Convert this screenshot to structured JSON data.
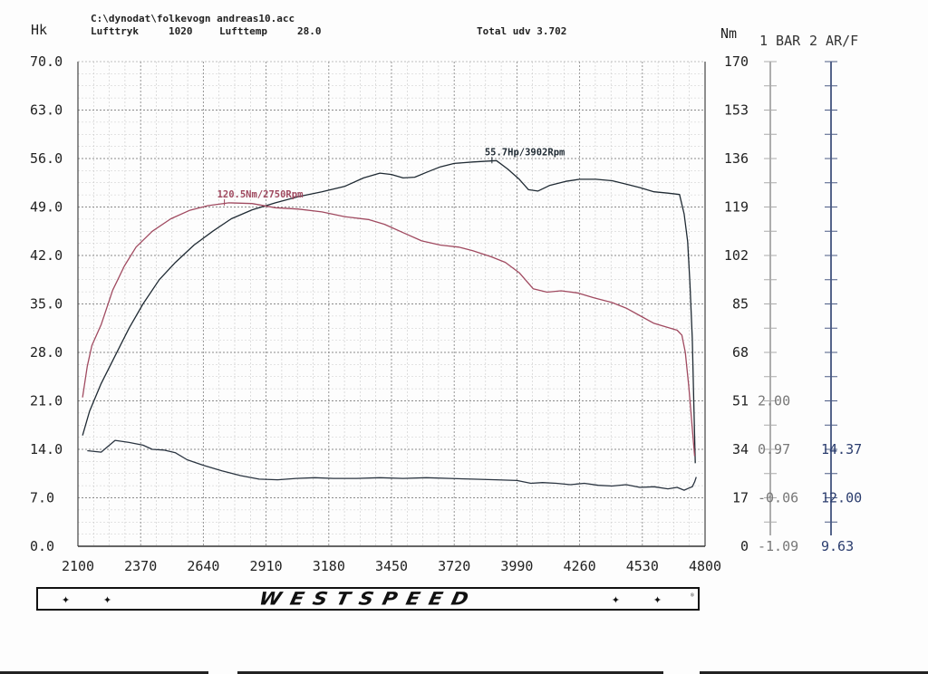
{
  "header": {
    "file": "C:\\dynodat\\folkevogn andreas10.acc",
    "pressure_label": "Lufttryk",
    "pressure_value": "1020",
    "temp_label": "Lufttemp",
    "temp_value": "28.0",
    "total_label": "Total udv 3.702"
  },
  "banner": {
    "brand": "WESTSPEED",
    "stars_left": "✦ ✦",
    "stars_right": "✦ ✦",
    "reg": "®"
  },
  "chart_data": {
    "type": "line",
    "x": {
      "min": 2100,
      "max": 4800,
      "ticks": [
        "2100",
        "2370",
        "2640",
        "2910",
        "3180",
        "3450",
        "3720",
        "3990",
        "4260",
        "4530",
        "4800"
      ]
    },
    "y_left": {
      "label": "Hk",
      "min": 0,
      "max": 70,
      "ticks": [
        "0.0",
        "7.0",
        "14.0",
        "21.0",
        "28.0",
        "35.0",
        "42.0",
        "49.0",
        "56.0",
        "63.0",
        "70.0"
      ]
    },
    "y_right": {
      "label": "Nm",
      "min": 0,
      "max": 170,
      "ticks": [
        "0",
        "17",
        "34",
        "51",
        "68",
        "85",
        "102",
        "119",
        "136",
        "153",
        "170"
      ]
    },
    "aux_axes": [
      {
        "label": "1 BAR",
        "ticks": [
          "-1.09",
          "-0.06",
          "0.97",
          "2.00"
        ],
        "tick_levels": [
          0,
          7,
          14,
          21
        ]
      },
      {
        "label": "2 AR/F",
        "ticks": [
          "9.63",
          "12.00",
          "14.37"
        ],
        "tick_levels": [
          0,
          7,
          14
        ]
      }
    ],
    "grid": true,
    "series": [
      {
        "color": "#1f2a33",
        "axis": "left",
        "points": [
          [
            2120,
            16
          ],
          [
            2150,
            19.5
          ],
          [
            2200,
            23.5
          ],
          [
            2260,
            27.5
          ],
          [
            2320,
            31.5
          ],
          [
            2380,
            35
          ],
          [
            2450,
            38.5
          ],
          [
            2520,
            41
          ],
          [
            2600,
            43.5
          ],
          [
            2680,
            45.5
          ],
          [
            2760,
            47.3
          ],
          [
            2850,
            48.6
          ],
          [
            2950,
            49.6
          ],
          [
            3050,
            50.5
          ],
          [
            3150,
            51.2
          ],
          [
            3250,
            52
          ],
          [
            3330,
            53.2
          ],
          [
            3400,
            53.9
          ],
          [
            3450,
            53.7
          ],
          [
            3500,
            53.2
          ],
          [
            3550,
            53.3
          ],
          [
            3600,
            54
          ],
          [
            3660,
            54.8
          ],
          [
            3720,
            55.3
          ],
          [
            3800,
            55.5
          ],
          [
            3902,
            55.7
          ],
          [
            3950,
            54.5
          ],
          [
            4000,
            53
          ],
          [
            4040,
            51.5
          ],
          [
            4080,
            51.3
          ],
          [
            4130,
            52.1
          ],
          [
            4200,
            52.7
          ],
          [
            4260,
            53
          ],
          [
            4330,
            53
          ],
          [
            4400,
            52.8
          ],
          [
            4460,
            52.3
          ],
          [
            4520,
            51.8
          ],
          [
            4580,
            51.2
          ],
          [
            4640,
            51
          ],
          [
            4690,
            50.8
          ],
          [
            4710,
            48
          ],
          [
            4725,
            44
          ],
          [
            4735,
            38
          ],
          [
            4745,
            30
          ],
          [
            4752,
            20
          ],
          [
            4758,
            12
          ]
        ]
      },
      {
        "color": "#a04a60",
        "axis": "left",
        "points": [
          [
            2120,
            21.5
          ],
          [
            2140,
            26
          ],
          [
            2160,
            29
          ],
          [
            2200,
            32
          ],
          [
            2250,
            37
          ],
          [
            2300,
            40.5
          ],
          [
            2350,
            43.2
          ],
          [
            2420,
            45.5
          ],
          [
            2500,
            47.3
          ],
          [
            2580,
            48.5
          ],
          [
            2660,
            49.2
          ],
          [
            2750,
            49.6
          ],
          [
            2850,
            49.5
          ],
          [
            2950,
            48.9
          ],
          [
            3050,
            48.7
          ],
          [
            3150,
            48.3
          ],
          [
            3250,
            47.6
          ],
          [
            3350,
            47.2
          ],
          [
            3420,
            46.5
          ],
          [
            3500,
            45.3
          ],
          [
            3580,
            44.1
          ],
          [
            3660,
            43.5
          ],
          [
            3740,
            43.2
          ],
          [
            3800,
            42.7
          ],
          [
            3880,
            41.8
          ],
          [
            3940,
            41
          ],
          [
            4000,
            39.5
          ],
          [
            4060,
            37.2
          ],
          [
            4120,
            36.7
          ],
          [
            4180,
            36.9
          ],
          [
            4250,
            36.6
          ],
          [
            4320,
            35.9
          ],
          [
            4400,
            35.2
          ],
          [
            4460,
            34.4
          ],
          [
            4520,
            33.3
          ],
          [
            4580,
            32.2
          ],
          [
            4640,
            31.6
          ],
          [
            4680,
            31.2
          ],
          [
            4700,
            30.5
          ],
          [
            4715,
            28
          ],
          [
            4730,
            23
          ],
          [
            4745,
            17
          ],
          [
            4755,
            13
          ]
        ]
      },
      {
        "color": "#2a3440",
        "axis": "left",
        "points": [
          [
            2140,
            13.8
          ],
          [
            2200,
            13.6
          ],
          [
            2260,
            15.3
          ],
          [
            2320,
            15
          ],
          [
            2380,
            14.6
          ],
          [
            2420,
            14
          ],
          [
            2470,
            13.9
          ],
          [
            2520,
            13.5
          ],
          [
            2570,
            12.5
          ],
          [
            2640,
            11.7
          ],
          [
            2720,
            10.9
          ],
          [
            2800,
            10.2
          ],
          [
            2880,
            9.7
          ],
          [
            2960,
            9.6
          ],
          [
            3040,
            9.8
          ],
          [
            3120,
            9.9
          ],
          [
            3200,
            9.8
          ],
          [
            3300,
            9.8
          ],
          [
            3400,
            9.9
          ],
          [
            3500,
            9.8
          ],
          [
            3600,
            9.9
          ],
          [
            3700,
            9.8
          ],
          [
            3800,
            9.7
          ],
          [
            3900,
            9.6
          ],
          [
            3990,
            9.5
          ],
          [
            4050,
            9.1
          ],
          [
            4100,
            9.2
          ],
          [
            4160,
            9.1
          ],
          [
            4220,
            8.9
          ],
          [
            4280,
            9.1
          ],
          [
            4340,
            8.8
          ],
          [
            4400,
            8.7
          ],
          [
            4460,
            8.9
          ],
          [
            4520,
            8.5
          ],
          [
            4580,
            8.6
          ],
          [
            4640,
            8.3
          ],
          [
            4680,
            8.5
          ],
          [
            4710,
            8.1
          ],
          [
            4730,
            8.4
          ],
          [
            4745,
            8.6
          ],
          [
            4755,
            9.3
          ],
          [
            4762,
            10
          ]
        ]
      }
    ],
    "annotations": [
      {
        "text": "55.7Hp/3902Rpm",
        "x": 3902,
        "y": 55.7,
        "color": "#1f2a33"
      },
      {
        "text": "120.5Nm/2750Rpm",
        "x": 2750,
        "y": 49.6,
        "color": "#a04a60"
      }
    ]
  }
}
